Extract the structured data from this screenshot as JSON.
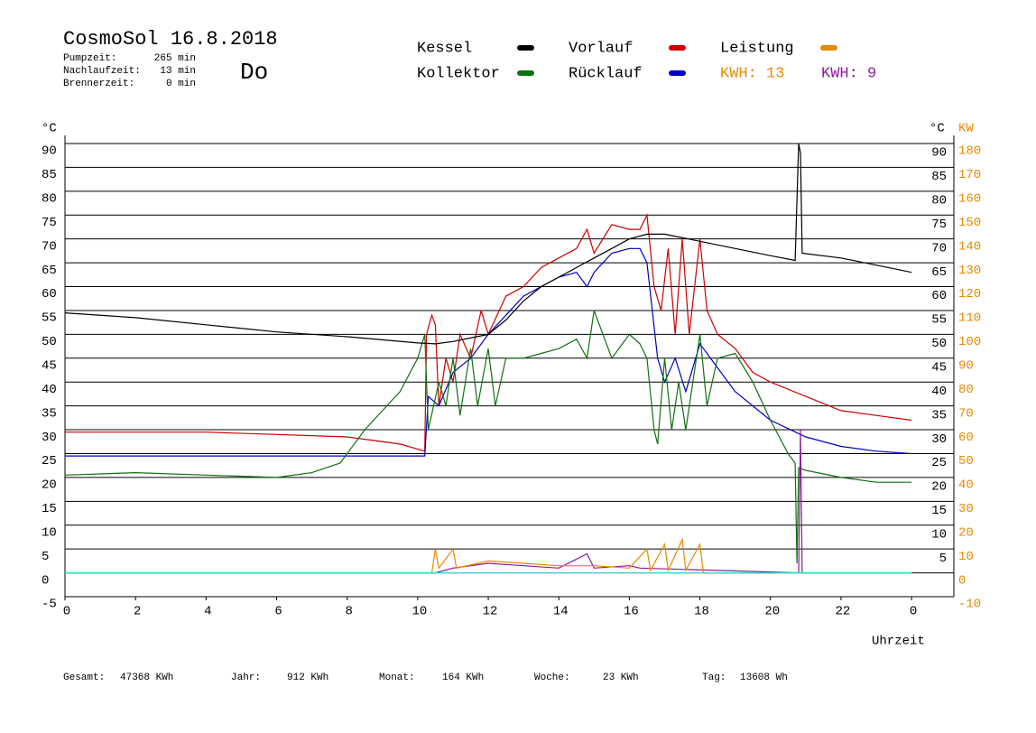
{
  "chart_data": {
    "type": "line",
    "title": "CosmoSol 16.8.2018",
    "day": "Do",
    "info": [
      [
        "Pumpzeit:",
        "265 min"
      ],
      [
        "Nachlaufzeit:",
        "13 min"
      ],
      [
        "Brennerzeit:",
        "0 min"
      ]
    ],
    "footer": [
      [
        "Gesamt:",
        "47368 KWh"
      ],
      [
        "Jahr:",
        "912 KWh"
      ],
      [
        "Monat:",
        "164 KWh"
      ],
      [
        "Woche:",
        "23 KWh"
      ],
      [
        "Tag:",
        "13608 Wh"
      ]
    ],
    "ylabel": "°C",
    "ylabel_right": "°C",
    "y2label": "KW",
    "xlabel": "Uhrzeit",
    "kwh_labels": [
      {
        "text": "KWH: 13",
        "color": "#e68a00"
      },
      {
        "text": "KWH: 9",
        "color": "#8b1a9b"
      }
    ],
    "xlim": [
      0,
      25.2
    ],
    "xticks": [
      0,
      2,
      4,
      6,
      8,
      10,
      12,
      14,
      16,
      18,
      20,
      22,
      {
        "value": 24,
        "label": "0"
      }
    ],
    "ylim": [
      -5,
      90
    ],
    "yticks": [
      -5,
      0,
      5,
      10,
      15,
      20,
      25,
      30,
      35,
      40,
      45,
      50,
      55,
      60,
      65,
      70,
      75,
      80,
      85,
      90
    ],
    "yticks_right": [
      5,
      10,
      15,
      20,
      25,
      30,
      35,
      40,
      45,
      50,
      55,
      60,
      65,
      70,
      75,
      80,
      85,
      90
    ],
    "y2lim": [
      -10,
      180
    ],
    "y2ticks": [
      -10,
      0,
      10,
      20,
      30,
      40,
      50,
      60,
      70,
      80,
      90,
      100,
      110,
      120,
      130,
      140,
      150,
      160,
      170,
      180
    ],
    "grid": true,
    "series": [
      {
        "name": "Kessel",
        "color": "#000000",
        "x": [
          0,
          2,
          4,
          6,
          8,
          10,
          10.5,
          11,
          12,
          12.5,
          13,
          13.5,
          14,
          14.5,
          15,
          15.5,
          16,
          16.5,
          17,
          18,
          19,
          20,
          20.7,
          20.8,
          20.85,
          20.9,
          22,
          23,
          24
        ],
        "values": [
          54.5,
          53.5,
          52,
          50.5,
          49.5,
          48.2,
          48,
          48.5,
          50,
          53,
          57,
          60,
          62,
          64,
          66,
          68,
          70,
          71,
          71,
          69.5,
          68,
          66.5,
          65.5,
          90,
          88,
          67,
          66,
          64.5,
          63
        ]
      },
      {
        "name": "Kollektor",
        "color": "#107010",
        "x": [
          0,
          2,
          4,
          6,
          7,
          7.8,
          8.5,
          9,
          9.5,
          10,
          10.2,
          10.3,
          10.6,
          10.8,
          11,
          11.2,
          11.5,
          11.7,
          12,
          12.2,
          12.5,
          13,
          13.5,
          14,
          14.5,
          14.8,
          15,
          15.5,
          16,
          16.3,
          16.5,
          16.7,
          16.8,
          17,
          17.2,
          17.4,
          17.6,
          18,
          18.2,
          18.5,
          19,
          19.5,
          20,
          20.5,
          20.7,
          20.75,
          20.8,
          21,
          22,
          23,
          24
        ],
        "values": [
          20.5,
          21,
          20.5,
          20,
          21,
          23,
          30,
          34,
          38,
          45,
          50,
          30,
          40,
          35,
          45,
          33,
          47,
          35,
          47,
          35,
          45,
          45,
          46,
          47,
          49,
          45,
          55,
          45,
          50,
          48,
          45,
          30,
          27,
          45,
          30,
          40,
          30,
          50,
          35,
          45,
          46,
          40,
          32,
          25,
          23,
          2,
          22,
          21.5,
          20,
          19,
          19
        ]
      },
      {
        "name": "Vorlauf",
        "color": "#cc0000",
        "x": [
          0,
          4,
          8,
          9.5,
          10.2,
          10.25,
          10.4,
          10.5,
          10.6,
          10.8,
          11,
          11.2,
          11.5,
          11.8,
          12,
          12.5,
          13,
          13.5,
          14,
          14.5,
          14.8,
          15,
          15.5,
          16,
          16.3,
          16.5,
          16.7,
          16.9,
          17.1,
          17.3,
          17.5,
          17.7,
          18,
          18.2,
          18.5,
          19,
          19.5,
          20,
          21,
          22,
          23,
          24
        ],
        "values": [
          29.5,
          29.5,
          28.5,
          27,
          25.5,
          50,
          54,
          52,
          35,
          45,
          40,
          50,
          45,
          55,
          50,
          58,
          60,
          64,
          66,
          68,
          72,
          67,
          73,
          72,
          72,
          75,
          60,
          55,
          68,
          50,
          70,
          50,
          70,
          55,
          50,
          47,
          42,
          40,
          37,
          34,
          33,
          32
        ]
      },
      {
        "name": "Rücklauf",
        "color": "#0000c0",
        "x": [
          0,
          10.2,
          10.3,
          10.6,
          11,
          11.5,
          12,
          12.5,
          13,
          13.5,
          14,
          14.5,
          14.8,
          15,
          15.5,
          16,
          16.3,
          16.5,
          16.8,
          17,
          17.3,
          17.6,
          18,
          18.5,
          19,
          20,
          21,
          22,
          23,
          24
        ],
        "values": [
          24.5,
          24.5,
          37,
          35,
          42,
          45,
          50,
          54,
          58,
          60,
          62,
          63,
          60,
          63,
          67,
          68,
          68,
          65,
          45,
          40,
          45,
          38,
          48,
          43,
          38,
          32,
          28.5,
          26.5,
          25.5,
          25
        ]
      },
      {
        "name": "Leistung",
        "color": "#e68a00",
        "axis": "y2",
        "x": [
          0,
          10.4,
          10.5,
          10.6,
          11,
          11.1,
          12,
          13,
          14,
          15,
          16,
          16.5,
          16.6,
          17,
          17.1,
          17.5,
          17.6,
          18,
          18.1,
          24
        ],
        "values": [
          0,
          0,
          10,
          2,
          10,
          2,
          5,
          4,
          3,
          3,
          2,
          10,
          1,
          12,
          1,
          14,
          1,
          12,
          0,
          0
        ]
      },
      {
        "color": "#8b1a9b",
        "axis": "y2",
        "x": [
          0,
          10.5,
          11,
          12,
          13,
          14,
          14.8,
          15,
          16,
          16.3,
          20.8,
          20.85,
          20.9,
          24
        ],
        "values": [
          0,
          0,
          2,
          4,
          3,
          2,
          8,
          2,
          3,
          2,
          0,
          60,
          0,
          0
        ]
      },
      {
        "color": "#40d0d0",
        "x": [
          0,
          24
        ],
        "values": [
          0,
          0
        ]
      }
    ]
  }
}
